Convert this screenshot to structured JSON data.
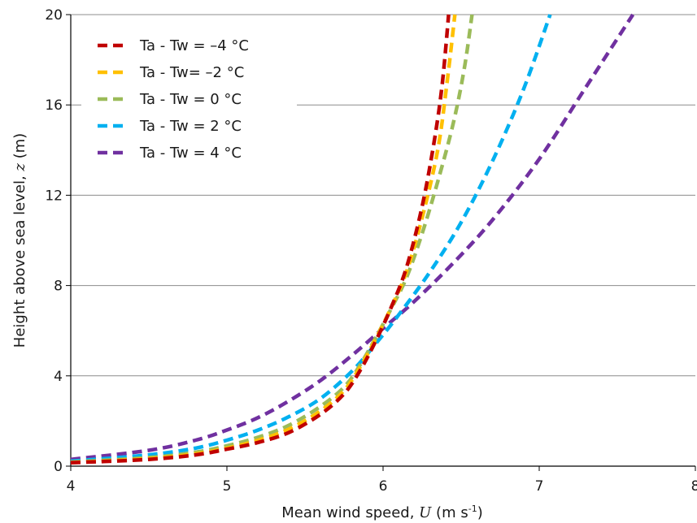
{
  "chart_data": {
    "type": "line",
    "xlabel": "Mean wind speed, U (m s-1)",
    "ylabel": "Height above sea level, z (m)",
    "xlabel_parts": {
      "prefix": "Mean wind speed, ",
      "var": "U",
      "mid": " (m s",
      "sup": "-1",
      "suffix": ")"
    },
    "ylabel_parts": {
      "prefix": "Height above sea level, ",
      "var": "z",
      "suffix": " (m)"
    },
    "xlim": [
      4,
      8
    ],
    "ylim": [
      0,
      20
    ],
    "x_ticks": [
      "4",
      "5",
      "6",
      "7",
      "8"
    ],
    "y_ticks": [
      "0",
      "4",
      "8",
      "12",
      "16",
      "20"
    ],
    "grid": "horizontal",
    "legend_position": "top-left",
    "series": [
      {
        "name": "Ta - Tw = –4 °C",
        "color": "#c00000",
        "x": [
          4.0,
          4.5,
          4.8,
          5.0,
          5.2,
          5.4,
          5.6,
          5.75,
          5.85,
          5.95,
          6.05,
          6.15,
          6.25,
          6.33,
          6.38,
          6.42
        ],
        "y": [
          0.15,
          0.3,
          0.5,
          0.75,
          1.05,
          1.5,
          2.3,
          3.2,
          4.2,
          5.5,
          7.0,
          8.8,
          11.5,
          14.5,
          17.0,
          20.0
        ]
      },
      {
        "name": "Ta - Tw= –2 °C",
        "color": "#ffc000",
        "x": [
          4.0,
          4.5,
          4.8,
          5.0,
          5.2,
          5.4,
          5.6,
          5.75,
          5.85,
          5.95,
          6.05,
          6.15,
          6.25,
          6.35,
          6.41,
          6.46
        ],
        "y": [
          0.16,
          0.33,
          0.55,
          0.8,
          1.15,
          1.65,
          2.45,
          3.35,
          4.35,
          5.6,
          7.0,
          8.6,
          11.0,
          14.0,
          17.0,
          20.0
        ]
      },
      {
        "name": "Ta - Tw = 0 °C",
        "color": "#9bbb59",
        "x": [
          4.0,
          4.5,
          4.8,
          5.0,
          5.2,
          5.4,
          5.6,
          5.75,
          5.85,
          5.95,
          6.05,
          6.15,
          6.25,
          6.35,
          6.45,
          6.52,
          6.57
        ],
        "y": [
          0.18,
          0.38,
          0.62,
          0.9,
          1.28,
          1.82,
          2.65,
          3.5,
          4.45,
          5.65,
          6.95,
          8.35,
          10.3,
          12.6,
          15.2,
          17.6,
          20.0
        ]
      },
      {
        "name": "Ta - Tw = 2 °C",
        "color": "#00b0f0",
        "x": [
          4.0,
          4.5,
          4.8,
          5.0,
          5.2,
          5.4,
          5.6,
          5.8,
          5.95,
          6.1,
          6.3,
          6.5,
          6.7,
          6.9,
          7.07
        ],
        "y": [
          0.22,
          0.5,
          0.8,
          1.15,
          1.6,
          2.2,
          3.0,
          4.2,
          5.4,
          6.7,
          8.6,
          10.8,
          13.5,
          16.7,
          20.0
        ]
      },
      {
        "name": "Ta - Tw = 4 °C",
        "color": "#7030a0",
        "x": [
          4.0,
          4.5,
          4.8,
          5.0,
          5.2,
          5.4,
          5.6,
          5.8,
          6.0,
          6.2,
          6.45,
          6.7,
          7.0,
          7.3,
          7.6
        ],
        "y": [
          0.3,
          0.7,
          1.15,
          1.6,
          2.15,
          2.9,
          3.8,
          4.9,
          6.1,
          7.3,
          9.0,
          10.9,
          13.6,
          16.8,
          20.0
        ]
      }
    ]
  }
}
